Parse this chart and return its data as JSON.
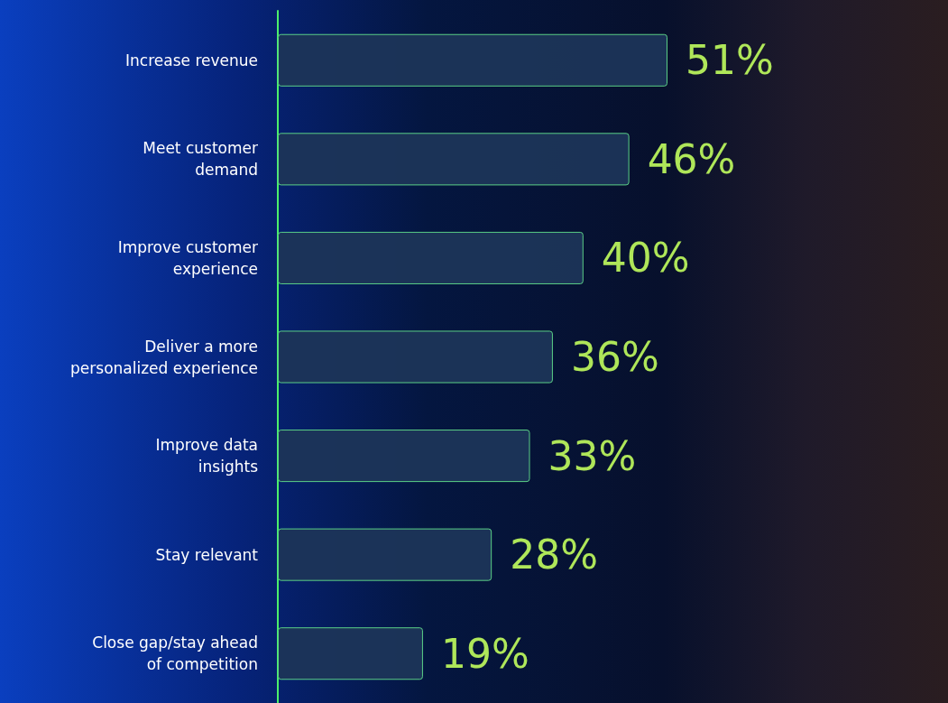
{
  "chart_data": {
    "type": "bar",
    "orientation": "horizontal",
    "categories": [
      "Increase revenue",
      "Meet customer\ndemand",
      "Improve customer\nexperience",
      "Deliver a more\npersonalized experience",
      "Improve data\ninsights",
      "Stay relevant",
      "Close gap/stay ahead\nof competition"
    ],
    "values": [
      51,
      46,
      40,
      36,
      33,
      28,
      19
    ],
    "value_labels": [
      "51%",
      "46%",
      "40%",
      "36%",
      "33%",
      "28%",
      "19%"
    ],
    "color": "#1c3558"
  }
}
